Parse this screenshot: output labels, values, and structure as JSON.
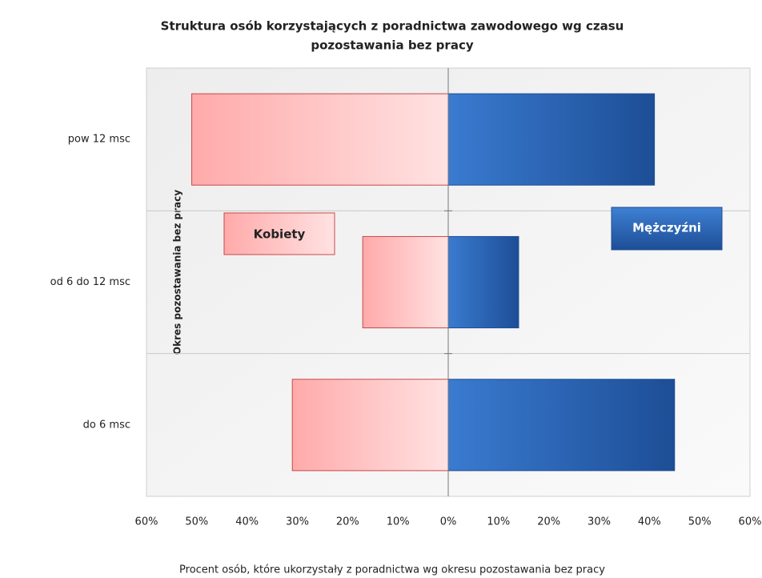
{
  "chart_data": {
    "type": "butterfly_bar",
    "title": [
      "Struktura osób korzystających z poradnictwa zawodowego wg czasu",
      "pozostawania bez pracy"
    ],
    "y_label": "Okres pozostawania  bez pracy",
    "x_label": "Procent osób, które ukorzystały z poradnictwa wg  okresu pozostawania  bez pracy",
    "categories": [
      "pow 12 msc",
      "od 6 do 12 msc",
      "do 6 msc"
    ],
    "series": [
      {
        "name": "Kobiety",
        "color": "#ffb3b3",
        "values": [
          -51,
          -17,
          -31
        ]
      },
      {
        "name": "Mężczyźni",
        "color": "#2e6bbf",
        "values": [
          41,
          14,
          45
        ]
      }
    ],
    "xlim": [
      -60,
      60
    ],
    "xticks": [
      {
        "value": -60,
        "label": "60%"
      },
      {
        "value": -50,
        "label": "50%"
      },
      {
        "value": -40,
        "label": "40%"
      },
      {
        "value": -30,
        "label": "30%"
      },
      {
        "value": -20,
        "label": "20%"
      },
      {
        "value": -10,
        "label": "10%"
      },
      {
        "value": 0,
        "label": "0%"
      },
      {
        "value": 10,
        "label": "10%"
      },
      {
        "value": 20,
        "label": "20%"
      },
      {
        "value": 30,
        "label": "30%"
      },
      {
        "value": 40,
        "label": "40%"
      },
      {
        "value": 50,
        "label": "50%"
      },
      {
        "value": 60,
        "label": "60%"
      }
    ]
  }
}
